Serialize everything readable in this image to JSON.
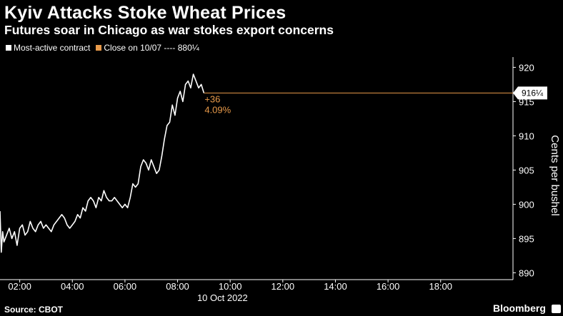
{
  "header": {
    "title": "Kyiv Attacks Stoke Wheat Prices",
    "subtitle": "Futures soar in Chicago as war stokes export concerns"
  },
  "legend": {
    "series_label": "Most-active contract",
    "reference_label": "Close on 10/07 ---- 880¼"
  },
  "footer": {
    "source": "Source: CBOT",
    "brand": "Bloomberg"
  },
  "colors": {
    "background": "#000000",
    "series": "#ffffff",
    "reference": "#e89a4a",
    "axis": "#ffffff"
  },
  "chart_data": {
    "type": "line",
    "title": "Kyiv Attacks Stoke Wheat Prices",
    "subtitle": "Futures soar in Chicago as war stokes export concerns",
    "xlabel": "10 Oct 2022",
    "ylabel": "Cents per bushel",
    "xlim": [
      "01:15",
      "20:45"
    ],
    "ylim": [
      889,
      921.5
    ],
    "x_ticks": [
      "02:00",
      "04:00",
      "06:00",
      "08:00",
      "10:00",
      "12:00",
      "14:00",
      "16:00",
      "18:00"
    ],
    "y_ticks": [
      890,
      895,
      900,
      905,
      910,
      915,
      920
    ],
    "grid": false,
    "legend_position": "top-left",
    "series": [
      {
        "name": "Most-active contract",
        "color": "#ffffff",
        "x": [
          "01:15",
          "01:18",
          "01:21",
          "01:24",
          "01:30",
          "01:36",
          "01:42",
          "01:48",
          "01:54",
          "02:00",
          "02:06",
          "02:12",
          "02:18",
          "02:24",
          "02:30",
          "02:36",
          "02:42",
          "02:48",
          "02:54",
          "03:00",
          "03:06",
          "03:12",
          "03:18",
          "03:24",
          "03:30",
          "03:36",
          "03:42",
          "03:48",
          "03:54",
          "04:00",
          "04:06",
          "04:12",
          "04:18",
          "04:24",
          "04:30",
          "04:36",
          "04:42",
          "04:48",
          "04:54",
          "05:00",
          "05:06",
          "05:12",
          "05:18",
          "05:24",
          "05:30",
          "05:36",
          "05:42",
          "05:48",
          "05:54",
          "06:00",
          "06:06",
          "06:12",
          "06:18",
          "06:24",
          "06:30",
          "06:36",
          "06:42",
          "06:48",
          "06:54",
          "07:00",
          "07:06",
          "07:12",
          "07:18",
          "07:24",
          "07:30",
          "07:36",
          "07:42",
          "07:48",
          "07:54",
          "08:00",
          "08:06",
          "08:12",
          "08:18",
          "08:24",
          "08:30",
          "08:36",
          "08:42",
          "08:48",
          "08:54",
          "09:00"
        ],
        "y": [
          899.0,
          893.0,
          896.0,
          894.5,
          895.5,
          896.5,
          895.0,
          896.0,
          894.0,
          896.5,
          897.0,
          895.5,
          896.0,
          897.5,
          896.5,
          896.0,
          897.0,
          897.5,
          896.5,
          897.0,
          896.5,
          896.0,
          897.0,
          897.5,
          898.0,
          898.5,
          898.0,
          897.0,
          896.5,
          897.0,
          897.5,
          898.5,
          898.0,
          899.5,
          899.0,
          900.5,
          901.0,
          900.5,
          899.5,
          901.0,
          900.5,
          902.0,
          901.0,
          900.5,
          900.5,
          901.0,
          900.5,
          900.0,
          899.5,
          900.0,
          899.5,
          901.0,
          903.0,
          902.5,
          903.0,
          905.5,
          906.5,
          906.0,
          905.0,
          906.5,
          905.5,
          904.5,
          905.0,
          907.0,
          909.5,
          911.5,
          912.0,
          914.5,
          913.0,
          915.5,
          916.5,
          915.0,
          917.5,
          918.0,
          917.0,
          919.0,
          918.0,
          917.0,
          917.5,
          916.25
        ]
      }
    ],
    "reference_line": {
      "label": "Close on 10/07",
      "value": 880.25,
      "display_value": 916.25,
      "tag": "916¼"
    },
    "annotations": [
      {
        "text": "+36",
        "color": "#e89a4a"
      },
      {
        "text": "4.09%",
        "color": "#e89a4a"
      }
    ]
  }
}
